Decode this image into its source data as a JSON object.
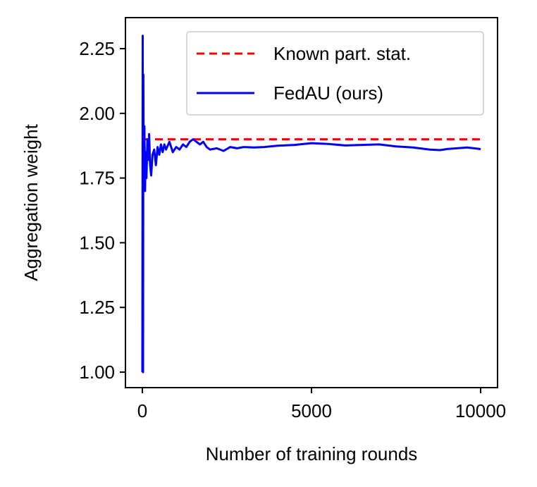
{
  "chart_data": {
    "type": "line",
    "title": "",
    "xlabel": "Number of training rounds",
    "ylabel": "Aggregation weight",
    "xlim": [
      -500,
      10500
    ],
    "ylim": [
      0.94,
      2.37
    ],
    "xticks": [
      0,
      5000,
      10000
    ],
    "xtick_labels": [
      "0",
      "5000",
      "10000"
    ],
    "yticks": [
      1.0,
      1.25,
      1.5,
      1.75,
      2.0,
      2.25
    ],
    "ytick_labels": [
      "1.00",
      "1.25",
      "1.50",
      "1.75",
      "2.00",
      "2.25"
    ],
    "grid": false,
    "legend_position": "top-right",
    "series": [
      {
        "name": "Known part. stat.",
        "color": "#ff0000",
        "style": "dashed",
        "x": [
          0,
          10000
        ],
        "y": [
          1.9,
          1.9
        ]
      },
      {
        "name": "FedAU (ours)",
        "color": "#0000ff",
        "style": "solid",
        "x": [
          0,
          10,
          20,
          30,
          40,
          60,
          80,
          100,
          120,
          150,
          180,
          200,
          230,
          260,
          300,
          350,
          400,
          450,
          500,
          550,
          600,
          650,
          700,
          800,
          900,
          1000,
          1100,
          1200,
          1300,
          1400,
          1500,
          1600,
          1700,
          1800,
          1900,
          2000,
          2200,
          2400,
          2600,
          2800,
          3000,
          3300,
          3600,
          4000,
          4500,
          5000,
          5500,
          6000,
          6500,
          7000,
          7500,
          8000,
          8500,
          8800,
          9000,
          9300,
          9600,
          10000
        ],
        "y": [
          1.0,
          2.3,
          1.0,
          2.15,
          1.7,
          1.95,
          1.7,
          1.85,
          1.75,
          1.9,
          1.82,
          1.92,
          1.8,
          1.76,
          1.84,
          1.86,
          1.8,
          1.87,
          1.84,
          1.88,
          1.85,
          1.88,
          1.86,
          1.89,
          1.85,
          1.87,
          1.86,
          1.88,
          1.87,
          1.89,
          1.9,
          1.89,
          1.88,
          1.89,
          1.87,
          1.86,
          1.865,
          1.855,
          1.87,
          1.865,
          1.87,
          1.868,
          1.87,
          1.875,
          1.878,
          1.885,
          1.882,
          1.876,
          1.878,
          1.88,
          1.872,
          1.868,
          1.86,
          1.858,
          1.862,
          1.865,
          1.868,
          1.862
        ]
      }
    ]
  }
}
